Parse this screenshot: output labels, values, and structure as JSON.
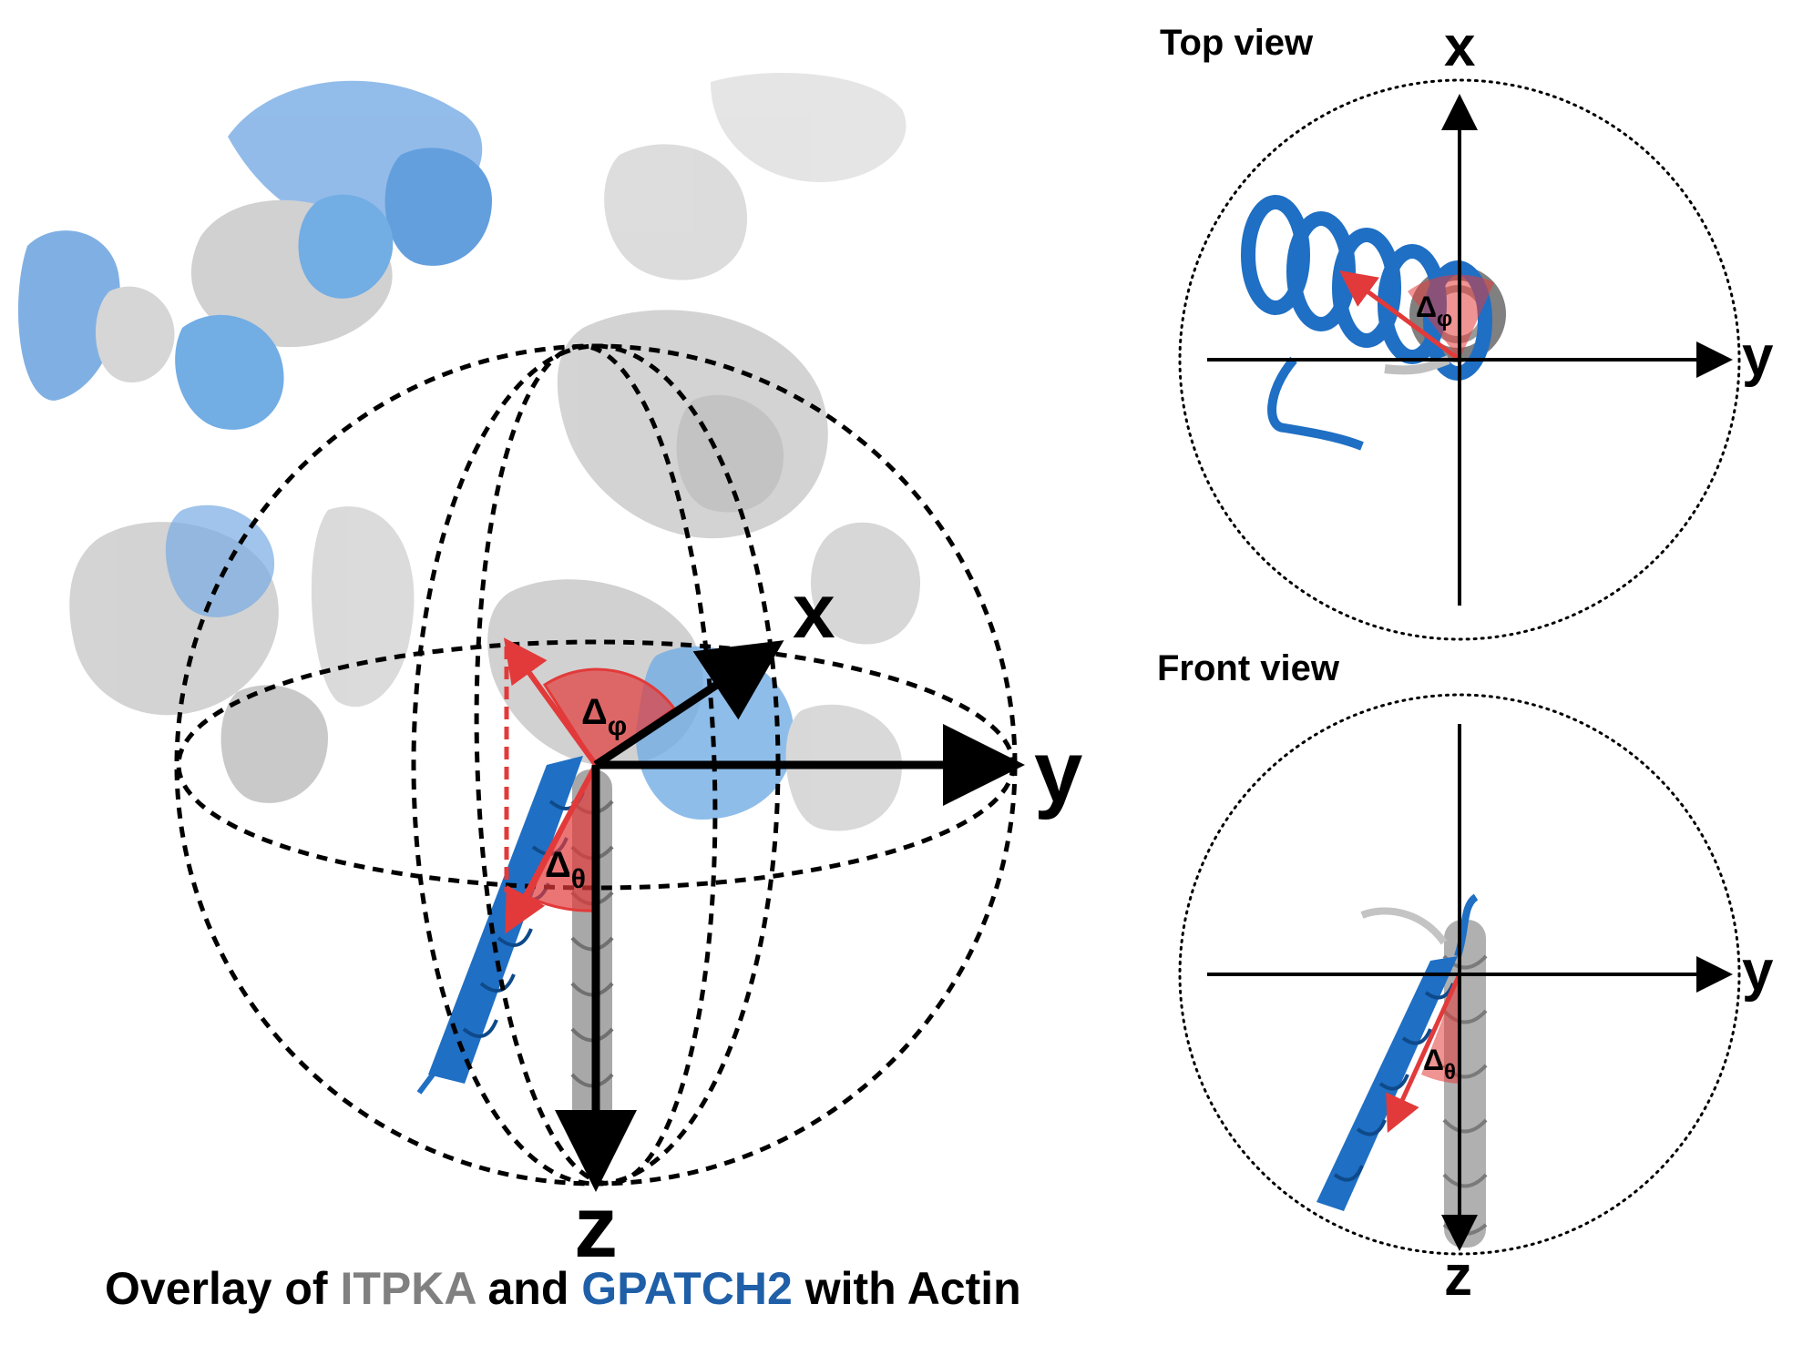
{
  "main_view": {
    "axis_x": "x",
    "axis_y": "y",
    "axis_z": "z",
    "angle_phi": {
      "base": "Δ",
      "sub": "φ"
    },
    "angle_theta": {
      "base": "Δ",
      "sub": "θ"
    }
  },
  "caption": {
    "part1": "Overlay of ",
    "protein1": "ITPKA",
    "part2": " and ",
    "protein2": "GPATCH2",
    "part3": " with Actin"
  },
  "top_view": {
    "title": "Top view",
    "axis_up": "x",
    "axis_right": "y",
    "angle": {
      "base": "Δ",
      "sub": "φ"
    }
  },
  "front_view": {
    "title": "Front view",
    "axis_right": "y",
    "axis_down": "z",
    "angle": {
      "base": "Δ",
      "sub": "θ"
    }
  },
  "colors": {
    "itpka": "#9e9e9e",
    "itpka_light": "#d4d4d4",
    "gpatch2": "#1f6fc4",
    "gpatch2_light": "#5a9fe0",
    "angle": "#e23a3a",
    "caption_gray": "#808080",
    "caption_blue": "#1f5fa8"
  }
}
